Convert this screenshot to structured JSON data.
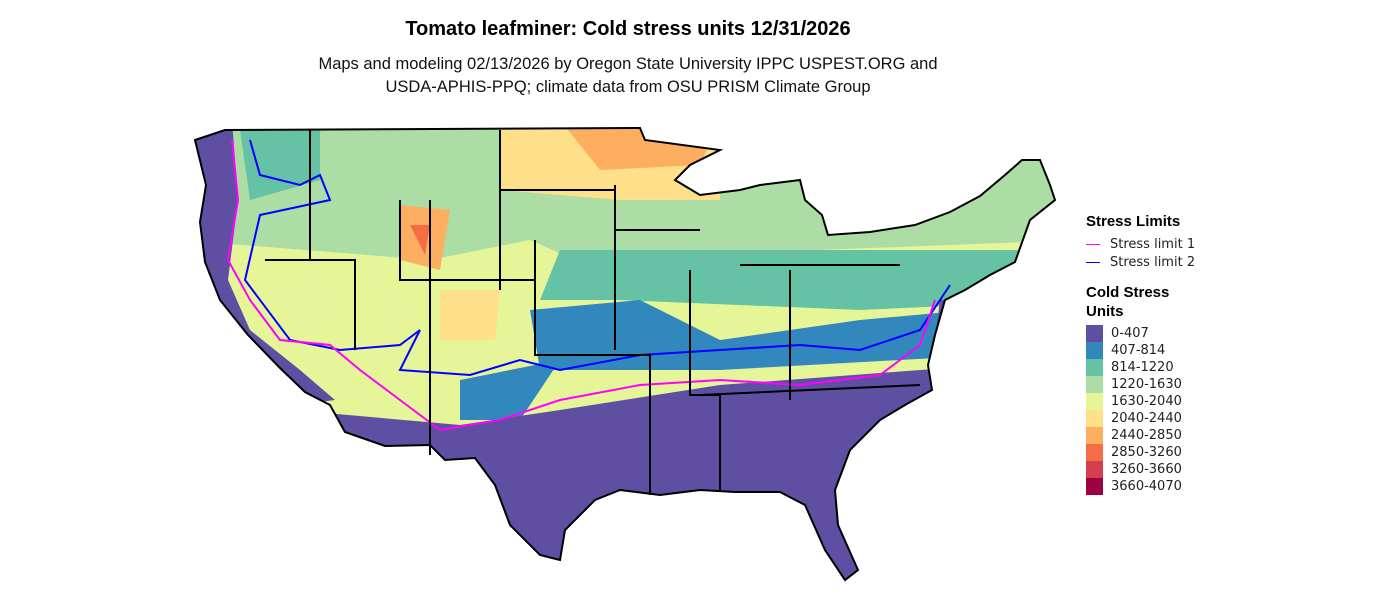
{
  "title": "Tomato leafminer: Cold stress units 12/31/2026",
  "subtitle_line1": "Maps and modeling 02/13/2026 by Oregon State University IPPC USPEST.ORG and",
  "subtitle_line2": "USDA-APHIS-PPQ; climate data from OSU PRISM Climate Group",
  "legend": {
    "limits_title": "Stress Limits",
    "limits": [
      {
        "label": "Stress limit 1",
        "color": "#ff00ff"
      },
      {
        "label": "Stress limit 2",
        "color": "#0000ff"
      }
    ],
    "units_title_line1": "Cold Stress",
    "units_title_line2": "Units",
    "classes": [
      {
        "label": "0-407",
        "color": "#5e4fa2"
      },
      {
        "label": "407-814",
        "color": "#3288bd"
      },
      {
        "label": "814-1220",
        "color": "#66c2a5"
      },
      {
        "label": "1220-1630",
        "color": "#abdda4"
      },
      {
        "label": "1630-2040",
        "color": "#e6f598"
      },
      {
        "label": "2040-2440",
        "color": "#fee08b"
      },
      {
        "label": "2440-2850",
        "color": "#fdae61"
      },
      {
        "label": "2850-3260",
        "color": "#f46d43"
      },
      {
        "label": "3260-3660",
        "color": "#d53e4f"
      },
      {
        "label": "3660-4070",
        "color": "#9e0142"
      }
    ]
  }
}
